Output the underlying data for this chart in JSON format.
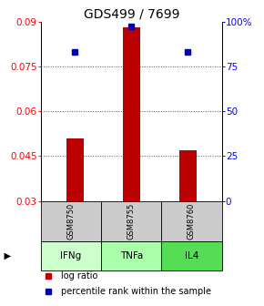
{
  "title": "GDS499 / 7699",
  "samples": [
    "GSM8750",
    "GSM8755",
    "GSM8760"
  ],
  "agents": [
    "IFNg",
    "TNFa",
    "IL4"
  ],
  "log_ratio": [
    0.051,
    0.088,
    0.047
  ],
  "percentile_rank": [
    83,
    97,
    83
  ],
  "ylim_left": [
    0.03,
    0.09
  ],
  "ylim_right": [
    0,
    100
  ],
  "yticks_left": [
    0.03,
    0.045,
    0.06,
    0.075,
    0.09
  ],
  "yticks_right": [
    0,
    25,
    50,
    75,
    100
  ],
  "ytick_labels_left": [
    "0.03",
    "0.045",
    "0.06",
    "0.075",
    "0.09"
  ],
  "ytick_labels_right": [
    "0",
    "25",
    "50",
    "75",
    "100%"
  ],
  "bar_color": "#bb0000",
  "dot_color": "#0000bb",
  "agent_colors": [
    "#ccffcc",
    "#aaffaa",
    "#55dd55"
  ],
  "sample_bg": "#cccccc",
  "grid_color": "#555555",
  "title_fontsize": 10,
  "tick_fontsize": 7.5,
  "legend_fontsize": 7,
  "bar_width": 0.3
}
